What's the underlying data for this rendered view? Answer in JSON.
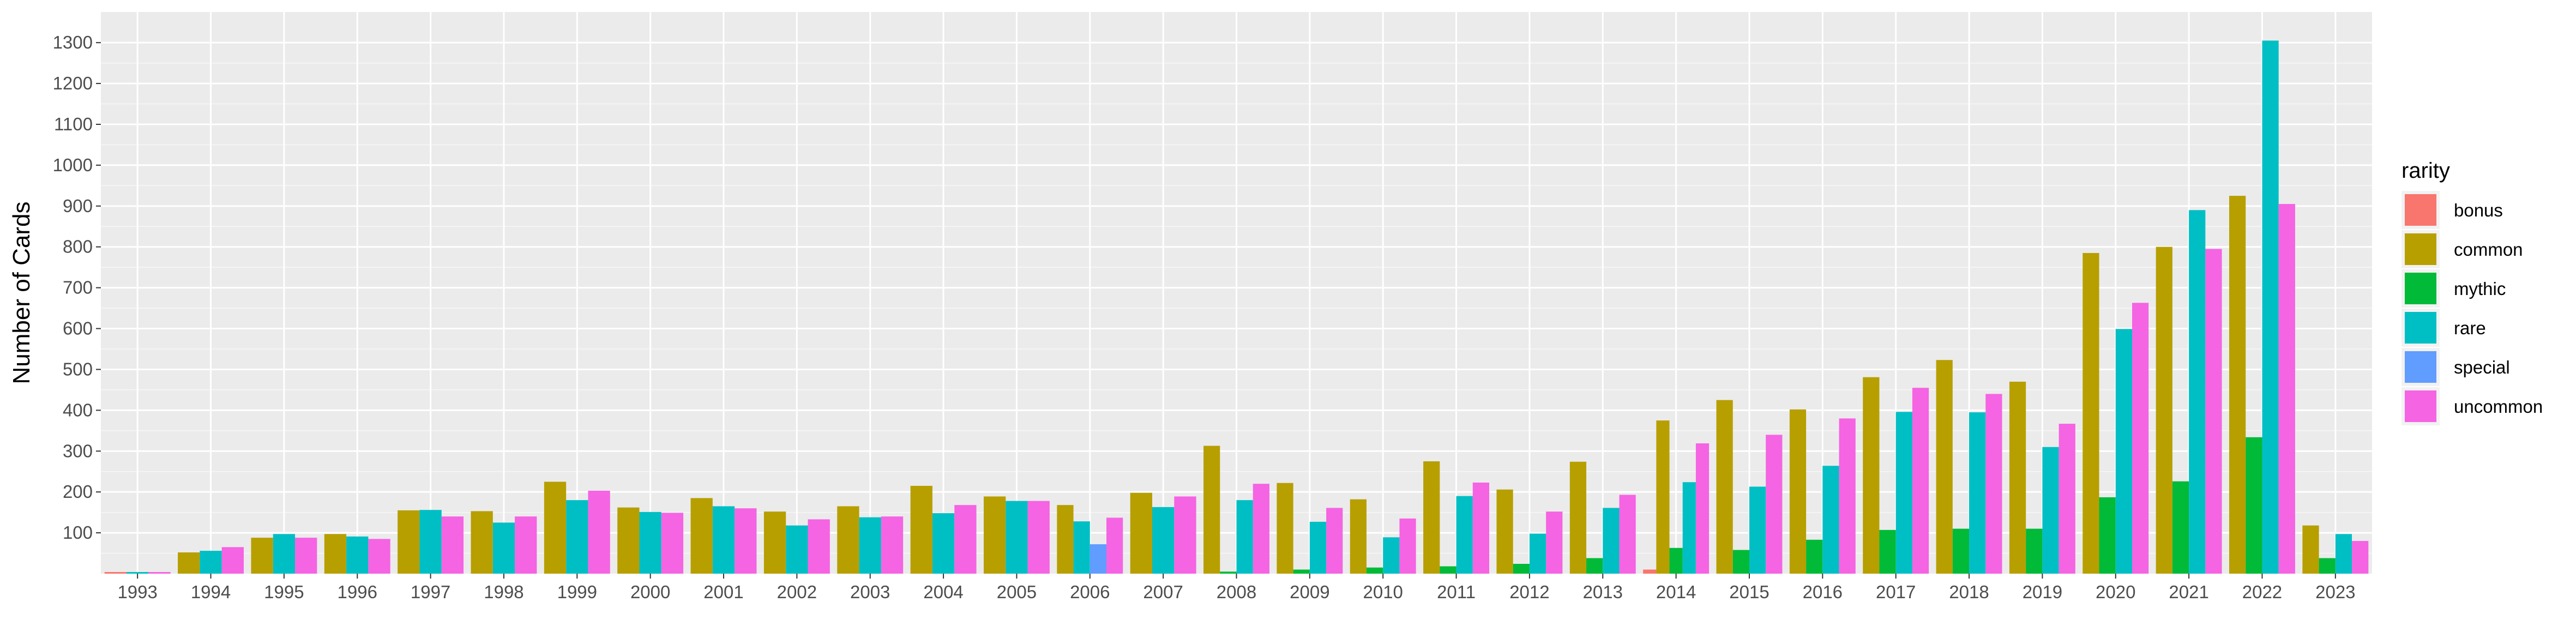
{
  "chart_data": {
    "type": "bar",
    "ylabel": "Number of Cards",
    "xlabel": "",
    "ylim": [
      0,
      1375
    ],
    "yticks": [
      100,
      200,
      300,
      400,
      500,
      600,
      700,
      800,
      900,
      1000,
      1100,
      1200,
      1300
    ],
    "grid": true,
    "legend_position": "right",
    "legend_title": "rarity",
    "categories": [
      "1993",
      "1994",
      "1995",
      "1996",
      "1997",
      "1998",
      "1999",
      "2000",
      "2001",
      "2002",
      "2003",
      "2004",
      "2005",
      "2006",
      "2007",
      "2008",
      "2009",
      "2010",
      "2011",
      "2012",
      "2013",
      "2014",
      "2015",
      "2016",
      "2017",
      "2018",
      "2019",
      "2020",
      "2021",
      "2022",
      "2023"
    ],
    "series": [
      {
        "name": "bonus",
        "color": "#F8766D",
        "values": [
          4,
          0,
          0,
          0,
          0,
          0,
          0,
          0,
          0,
          0,
          0,
          0,
          0,
          0,
          0,
          0,
          0,
          0,
          0,
          0,
          0,
          10,
          0,
          0,
          0,
          0,
          0,
          0,
          0,
          0,
          0
        ]
      },
      {
        "name": "common",
        "color": "#B79F00",
        "values": [
          0,
          52,
          88,
          97,
          155,
          153,
          225,
          162,
          185,
          152,
          165,
          215,
          189,
          168,
          198,
          313,
          222,
          182,
          275,
          206,
          274,
          375,
          425,
          402,
          481,
          523,
          470,
          785,
          800,
          925,
          118
        ]
      },
      {
        "name": "mythic",
        "color": "#00BA38",
        "values": [
          0,
          0,
          0,
          0,
          0,
          0,
          0,
          0,
          0,
          0,
          0,
          0,
          0,
          0,
          0,
          5,
          10,
          15,
          18,
          24,
          38,
          63,
          58,
          83,
          107,
          110,
          110,
          187,
          226,
          334,
          38
        ]
      },
      {
        "name": "rare",
        "color": "#00BFC4",
        "values": [
          4,
          56,
          97,
          91,
          156,
          125,
          180,
          151,
          165,
          118,
          138,
          148,
          178,
          128,
          163,
          180,
          127,
          89,
          190,
          98,
          161,
          224,
          213,
          264,
          396,
          395,
          310,
          599,
          890,
          1305,
          97
        ]
      },
      {
        "name": "special",
        "color": "#619CFF",
        "values": [
          0,
          0,
          0,
          0,
          0,
          0,
          0,
          0,
          0,
          0,
          0,
          0,
          0,
          72,
          0,
          0,
          0,
          0,
          0,
          0,
          0,
          0,
          0,
          0,
          0,
          0,
          0,
          0,
          0,
          0,
          0
        ]
      },
      {
        "name": "uncommon",
        "color": "#F564E3",
        "values": [
          4,
          65,
          88,
          85,
          140,
          140,
          203,
          149,
          160,
          133,
          140,
          168,
          178,
          137,
          189,
          220,
          161,
          135,
          223,
          152,
          193,
          319,
          340,
          380,
          455,
          440,
          367,
          663,
          795,
          905,
          80
        ]
      }
    ]
  },
  "colors": {
    "panel_background": "#EBEBEB",
    "grid_major": "#FFFFFF",
    "tick_text": "#4D4D4D"
  }
}
